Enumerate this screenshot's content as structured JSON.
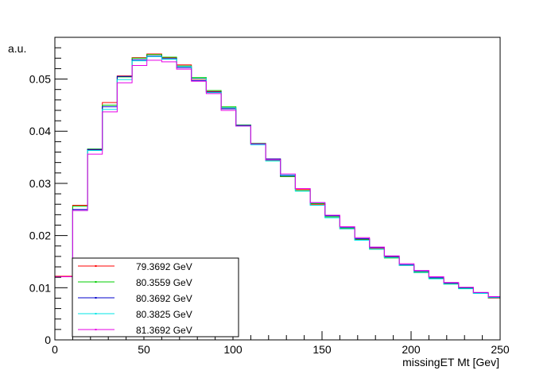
{
  "chart_data": {
    "type": "line",
    "style": "step-histogram",
    "title": "",
    "xlabel": "missingET Mt [Gev]",
    "ylabel": "a.u.",
    "xlim": [
      0,
      250
    ],
    "ylim": [
      0,
      0.058
    ],
    "x_ticks": [
      0,
      50,
      100,
      150,
      200,
      250
    ],
    "x_tick_labels": [
      "0",
      "50",
      "100",
      "150",
      "200",
      "250"
    ],
    "y_ticks": [
      0,
      0.01,
      0.02,
      0.03,
      0.04,
      0.05
    ],
    "y_tick_labels": [
      "0",
      "0.01",
      "0.02",
      "0.03",
      "0.04",
      "0.05"
    ],
    "grid": false,
    "legend_position": "bottom-left",
    "bin_edges": [
      0,
      10,
      18.33,
      26.67,
      35,
      43.33,
      51.67,
      60,
      68.33,
      76.67,
      85,
      93.33,
      101.67,
      110,
      118.33,
      126.67,
      135,
      143.33,
      151.67,
      160,
      168.33,
      176.67,
      185,
      193.33,
      201.67,
      210,
      218.33,
      226.67,
      235,
      243.33,
      250
    ],
    "series": [
      {
        "name": "79.3692 GeV",
        "color": "#ff0000",
        "values": [
          0.0122,
          0.0258,
          0.0364,
          0.0455,
          0.0506,
          0.0541,
          0.0548,
          0.0541,
          0.0527,
          0.05,
          0.0476,
          0.0445,
          0.0411,
          0.0376,
          0.0347,
          0.0313,
          0.0288,
          0.026,
          0.0236,
          0.0213,
          0.0193,
          0.0175,
          0.0159,
          0.0143,
          0.0129,
          0.0118,
          0.0108,
          0.0099,
          0.0089,
          0.008
        ]
      },
      {
        "name": "80.3559 GeV",
        "color": "#00cc00",
        "values": [
          0.0121,
          0.0256,
          0.0366,
          0.045,
          0.0504,
          0.054,
          0.0547,
          0.0542,
          0.0525,
          0.0503,
          0.0478,
          0.0447,
          0.0412,
          0.0377,
          0.0344,
          0.0313,
          0.0286,
          0.0261,
          0.0236,
          0.0214,
          0.0192,
          0.0174,
          0.0157,
          0.0143,
          0.013,
          0.0118,
          0.0107,
          0.0099,
          0.009,
          0.0081
        ]
      },
      {
        "name": "80.3692 GeV",
        "color": "#0000cc",
        "values": [
          0.0121,
          0.025,
          0.0365,
          0.0447,
          0.0505,
          0.0537,
          0.0544,
          0.0539,
          0.0522,
          0.0497,
          0.0475,
          0.0443,
          0.0411,
          0.0375,
          0.0347,
          0.0315,
          0.029,
          0.0263,
          0.0238,
          0.0216,
          0.0194,
          0.0177,
          0.016,
          0.0144,
          0.0132,
          0.0119,
          0.0109,
          0.01,
          0.009,
          0.0082
        ]
      },
      {
        "name": "80.3825 GeV",
        "color": "#00e5e5",
        "values": [
          0.0121,
          0.0248,
          0.0363,
          0.0442,
          0.0499,
          0.0535,
          0.0543,
          0.0538,
          0.0524,
          0.0501,
          0.0474,
          0.0445,
          0.041,
          0.0374,
          0.0343,
          0.0316,
          0.0285,
          0.0258,
          0.0234,
          0.0213,
          0.0191,
          0.0174,
          0.0158,
          0.0143,
          0.0129,
          0.0117,
          0.0107,
          0.0098,
          0.0089,
          0.0081
        ]
      },
      {
        "name": "81.3692 GeV",
        "color": "#e600e6",
        "values": [
          0.0121,
          0.0248,
          0.0356,
          0.0437,
          0.0493,
          0.0526,
          0.0536,
          0.0533,
          0.0519,
          0.0496,
          0.0472,
          0.044,
          0.041,
          0.0376,
          0.0345,
          0.0318,
          0.029,
          0.0263,
          0.0239,
          0.0217,
          0.0196,
          0.0178,
          0.0161,
          0.0146,
          0.0133,
          0.0121,
          0.011,
          0.0101,
          0.0091,
          0.0083
        ]
      }
    ]
  }
}
